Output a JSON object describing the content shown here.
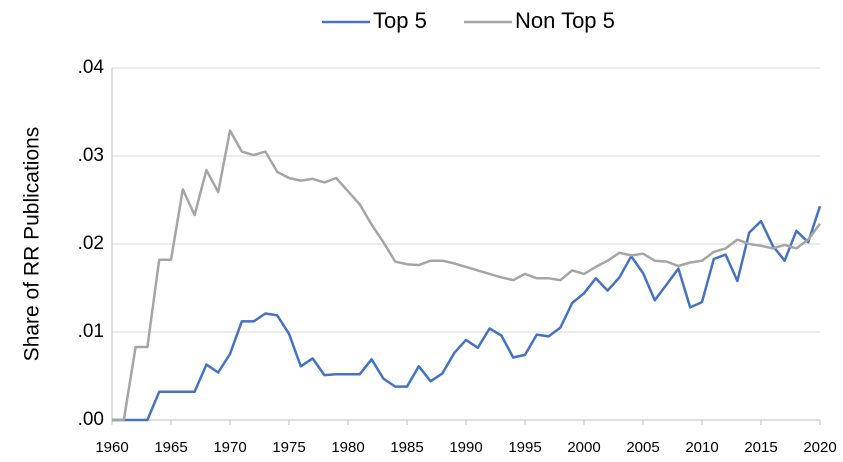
{
  "chart_data": {
    "type": "line",
    "y_label": "Share of RR Publications",
    "x": [
      1960,
      1961,
      1962,
      1963,
      1964,
      1965,
      1966,
      1967,
      1968,
      1969,
      1970,
      1971,
      1972,
      1973,
      1974,
      1975,
      1976,
      1977,
      1978,
      1979,
      1980,
      1981,
      1982,
      1983,
      1984,
      1985,
      1986,
      1987,
      1988,
      1989,
      1990,
      1991,
      1992,
      1993,
      1994,
      1995,
      1996,
      1997,
      1998,
      1999,
      2000,
      2001,
      2002,
      2003,
      2004,
      2005,
      2006,
      2007,
      2008,
      2009,
      2010,
      2011,
      2012,
      2013,
      2014,
      2015,
      2016,
      2017,
      2018,
      2019,
      2020
    ],
    "series": [
      {
        "name": "Top 5",
        "color": "#4472c4",
        "values": [
          0,
          0,
          0,
          0,
          0.0032,
          0.0032,
          0.0032,
          0.0032,
          0.0063,
          0.0054,
          0.0075,
          0.0112,
          0.0112,
          0.0121,
          0.0119,
          0.0098,
          0.0061,
          0.007,
          0.0051,
          0.0052,
          0.0052,
          0.0052,
          0.0069,
          0.0047,
          0.0038,
          0.0038,
          0.0061,
          0.0044,
          0.0053,
          0.0076,
          0.0091,
          0.0082,
          0.0104,
          0.0096,
          0.0071,
          0.0074,
          0.0097,
          0.0095,
          0.0105,
          0.0133,
          0.0144,
          0.0161,
          0.0147,
          0.0162,
          0.0186,
          0.0167,
          0.0136,
          0.0154,
          0.0172,
          0.0128,
          0.0134,
          0.0183,
          0.0188,
          0.0158,
          0.0213,
          0.0226,
          0.0198,
          0.0181,
          0.0215,
          0.0202,
          0.0243
        ]
      },
      {
        "name": "Non Top 5",
        "color": "#a5a5a5",
        "values": [
          0,
          0,
          0.0083,
          0.0083,
          0.0182,
          0.0182,
          0.0262,
          0.0233,
          0.0284,
          0.0259,
          0.0329,
          0.0305,
          0.0301,
          0.0305,
          0.0282,
          0.0275,
          0.0272,
          0.0274,
          0.027,
          0.0275,
          0.026,
          0.0245,
          0.0222,
          0.0202,
          0.018,
          0.0177,
          0.0176,
          0.0181,
          0.0181,
          0.0178,
          0.0174,
          0.017,
          0.0166,
          0.0162,
          0.0159,
          0.0166,
          0.0161,
          0.0161,
          0.0159,
          0.017,
          0.0166,
          0.0174,
          0.0181,
          0.019,
          0.0187,
          0.0189,
          0.0181,
          0.018,
          0.0175,
          0.0179,
          0.0181,
          0.0191,
          0.0195,
          0.0205,
          0.02,
          0.0198,
          0.0195,
          0.0199,
          0.0195,
          0.0205,
          0.0223
        ]
      }
    ],
    "xlim": [
      1960,
      2020
    ],
    "xticks": [
      1960,
      1965,
      1970,
      1975,
      1980,
      1985,
      1990,
      1995,
      2000,
      2005,
      2010,
      2015,
      2020
    ],
    "ylim": [
      0,
      0.04
    ],
    "yticks": [
      {
        "value": 0,
        "label": ".00"
      },
      {
        "value": 0.01,
        "label": ".01"
      },
      {
        "value": 0.02,
        "label": ".02"
      },
      {
        "value": 0.03,
        "label": ".03"
      },
      {
        "value": 0.04,
        "label": ".04"
      }
    ],
    "grid": true,
    "legend": "top"
  }
}
